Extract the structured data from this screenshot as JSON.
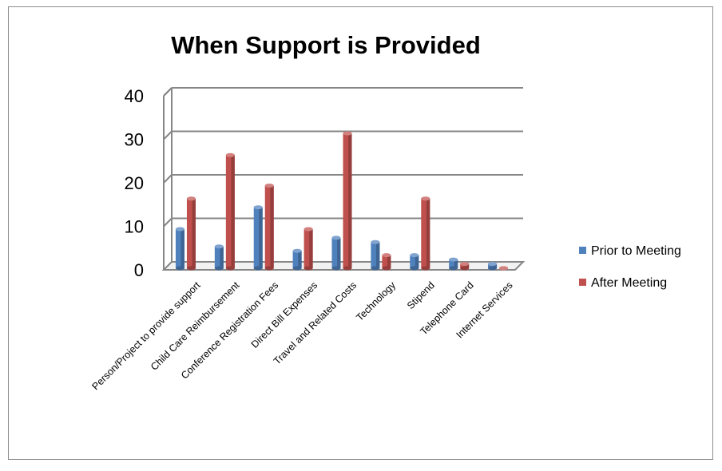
{
  "chart_data": {
    "type": "bar",
    "title": "When Support is Provided",
    "xlabel": "",
    "ylabel": "",
    "ylim": [
      0,
      40
    ],
    "yticks": [
      0,
      10,
      20,
      30,
      40
    ],
    "grid": true,
    "legend_position": "right",
    "categories": [
      "Person/Project to provide support",
      "Child Care Reimbursement",
      "Conference Registration Fees",
      "Direct Bill Expenses",
      "Travel and Related Costs",
      "Technology",
      "Stipend",
      "Telephone Card",
      "Internet Services"
    ],
    "series": [
      {
        "name": "Prior to Meeting",
        "color": "#4f81bd",
        "values": [
          9,
          5,
          14,
          4,
          7,
          6,
          3,
          2,
          1
        ]
      },
      {
        "name": "After Meeting",
        "color": "#c0504d",
        "values": [
          16,
          26,
          19,
          9,
          31,
          3,
          16,
          1,
          0
        ]
      }
    ]
  }
}
